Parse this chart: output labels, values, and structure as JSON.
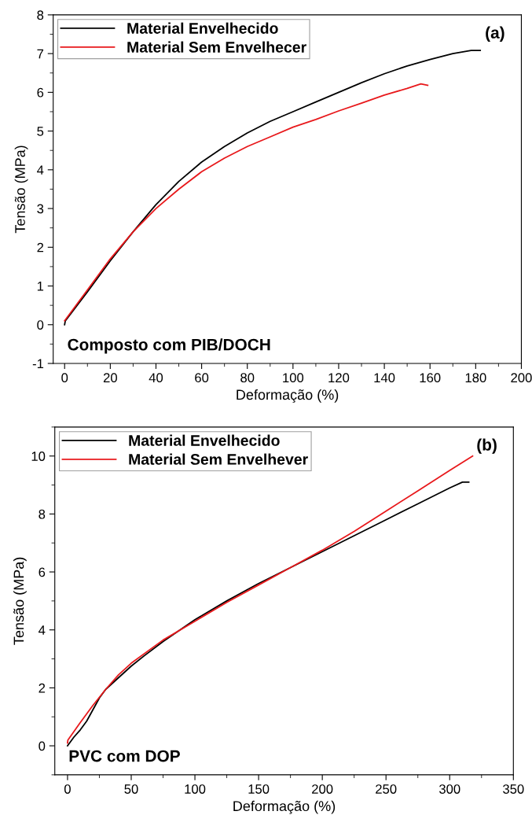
{
  "chart_data": [
    {
      "type": "line",
      "xlabel": "Deformação (%)",
      "ylabel": "Tensão (MPa)",
      "annotations": [
        "(a)",
        "Composto com PIB/DOCH"
      ],
      "xlim": [
        -5,
        200
      ],
      "ylim": [
        -1,
        8
      ],
      "xticks": [
        0,
        20,
        40,
        60,
        80,
        100,
        120,
        140,
        160,
        180,
        200
      ],
      "yticks": [
        -1,
        0,
        1,
        2,
        3,
        4,
        5,
        6,
        7,
        8
      ],
      "legend": "top left",
      "grid": false,
      "series": [
        {
          "name": "Material Envelhecido",
          "color": "#000000",
          "x": [
            0,
            0.3,
            10,
            20,
            30,
            40,
            50,
            60,
            70,
            80,
            90,
            100,
            110,
            120,
            130,
            140,
            150,
            160,
            170,
            178,
            182
          ],
          "values": [
            0,
            0.1,
            0.85,
            1.65,
            2.4,
            3.1,
            3.7,
            4.2,
            4.6,
            4.95,
            5.25,
            5.5,
            5.75,
            6.0,
            6.25,
            6.48,
            6.68,
            6.85,
            7.0,
            7.08,
            7.08
          ]
        },
        {
          "name": "Material Sem Envelhecer",
          "color": "#e8191c",
          "x": [
            0,
            10,
            20,
            30,
            40,
            50,
            60,
            70,
            80,
            90,
            100,
            110,
            120,
            130,
            140,
            150,
            156,
            159
          ],
          "values": [
            0.1,
            0.9,
            1.7,
            2.4,
            3.0,
            3.5,
            3.95,
            4.3,
            4.6,
            4.85,
            5.1,
            5.3,
            5.52,
            5.72,
            5.93,
            6.1,
            6.22,
            6.18
          ]
        }
      ]
    },
    {
      "type": "line",
      "xlabel": "Deformação (%)",
      "ylabel": "Tensão (MPa)",
      "annotations": [
        "(b)",
        "PVC com DOP"
      ],
      "xlim": [
        -10,
        350
      ],
      "ylim": [
        -1,
        11
      ],
      "xticks": [
        0,
        50,
        100,
        150,
        200,
        250,
        300,
        350
      ],
      "yticks": [
        0,
        2,
        4,
        6,
        8,
        10
      ],
      "legend": "top left",
      "grid": false,
      "series": [
        {
          "name": "Material Envelhecido",
          "color": "#000000",
          "x": [
            0,
            5,
            10,
            15,
            20,
            25,
            30,
            40,
            50,
            60,
            75,
            100,
            125,
            150,
            175,
            200,
            225,
            250,
            275,
            300,
            310,
            315
          ],
          "values": [
            0,
            0.3,
            0.55,
            0.85,
            1.25,
            1.65,
            1.95,
            2.35,
            2.75,
            3.1,
            3.6,
            4.35,
            5.0,
            5.6,
            6.15,
            6.7,
            7.25,
            7.8,
            8.35,
            8.9,
            9.1,
            9.1
          ]
        },
        {
          "name": "Material Sem Envelhever",
          "color": "#e8191c",
          "x": [
            0,
            0.3,
            10,
            20,
            30,
            40,
            50,
            75,
            100,
            125,
            150,
            175,
            200,
            225,
            250,
            275,
            300,
            318
          ],
          "values": [
            0.1,
            0.2,
            0.8,
            1.4,
            1.95,
            2.45,
            2.85,
            3.65,
            4.3,
            4.95,
            5.55,
            6.15,
            6.75,
            7.4,
            8.1,
            8.8,
            9.5,
            10.0
          ]
        }
      ]
    }
  ]
}
